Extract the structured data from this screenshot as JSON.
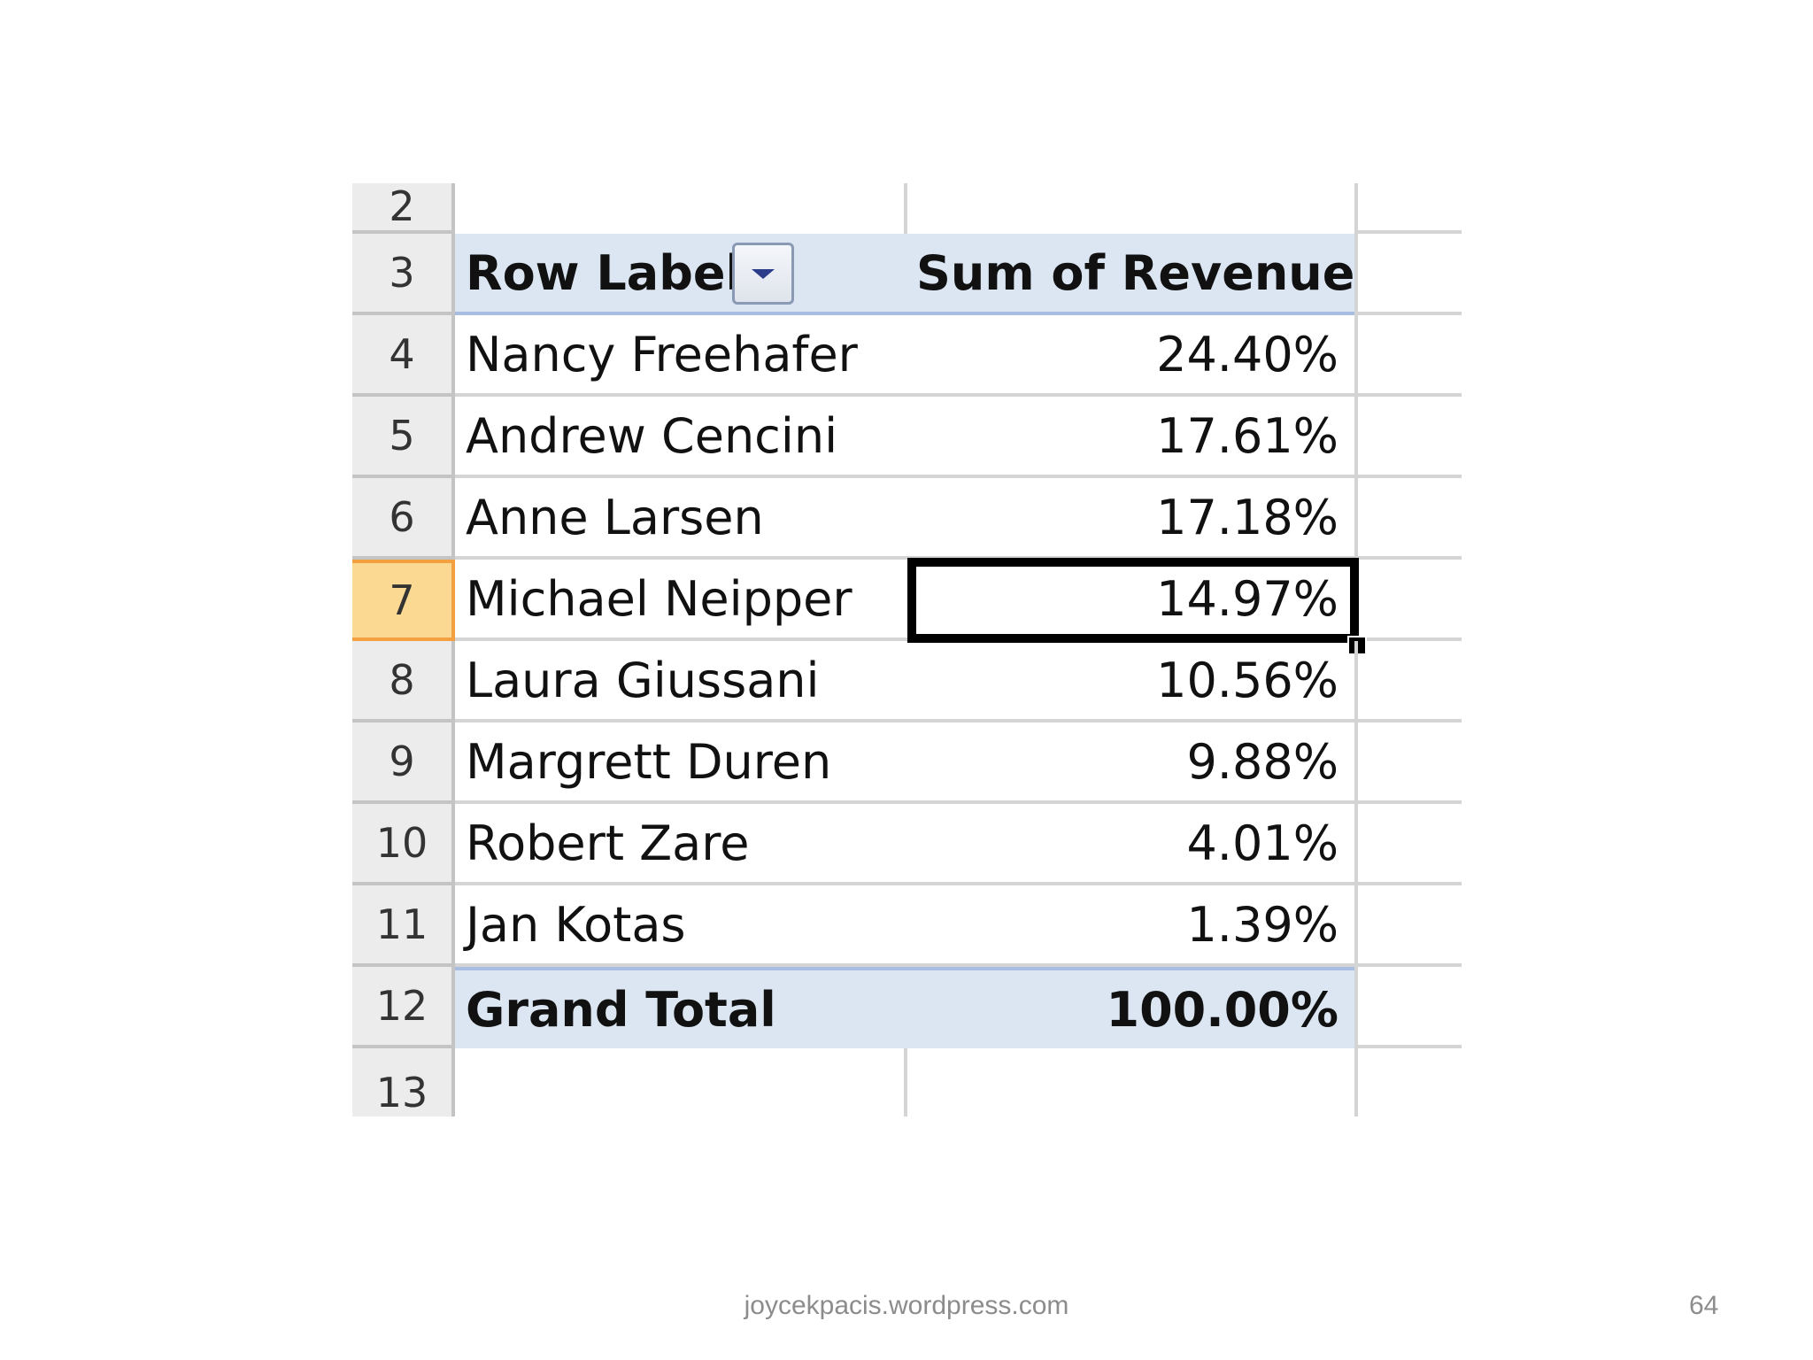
{
  "sheet": {
    "row_numbers": [
      "2",
      "3",
      "4",
      "5",
      "6",
      "7",
      "8",
      "9",
      "10",
      "11",
      "12",
      "13"
    ],
    "header": {
      "col_a": "Row Labels",
      "col_b": "Sum of Revenue"
    },
    "rows": [
      {
        "label": "Nancy Freehafer",
        "value": "24.40%"
      },
      {
        "label": "Andrew Cencini",
        "value": "17.61%"
      },
      {
        "label": "Anne Larsen",
        "value": "17.18%"
      },
      {
        "label": "Michael Neipper",
        "value": "14.97%"
      },
      {
        "label": "Laura Giussani",
        "value": "10.56%"
      },
      {
        "label": "Margrett Duren",
        "value": "9.88%"
      },
      {
        "label": "Robert Zare",
        "value": "4.01%"
      },
      {
        "label": "Jan Kotas",
        "value": "1.39%"
      }
    ],
    "total": {
      "label": "Grand Total",
      "value": "100.00%"
    },
    "selected_row": "7"
  },
  "footer": {
    "site": "joycekpacis.wordpress.com",
    "page": "64"
  }
}
